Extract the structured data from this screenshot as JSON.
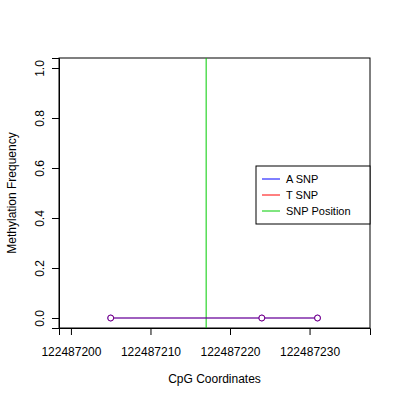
{
  "chart_data": {
    "type": "line",
    "x_label": "CpG Coordinates",
    "y_label": "Methylation Frequency",
    "x": [
      122487205,
      122487224,
      122487231
    ],
    "series": [
      {
        "name": "A SNP",
        "color": "#0000ff",
        "values": [
          0,
          0,
          0
        ],
        "marker": "circle"
      },
      {
        "name": "T SNP",
        "color": "#ff0000",
        "values": [
          0,
          0,
          0
        ],
        "marker": "circle"
      }
    ],
    "vlines": [
      {
        "name": "SNP Position",
        "color": "#00cc00",
        "x": 122487217
      }
    ],
    "xlim": [
      122487198.5,
      122487237.6
    ],
    "xticks": [
      122487200,
      122487210,
      122487220,
      122487230
    ],
    "ylim": [
      -0.04,
      1.04
    ],
    "yticks": [
      {
        "value": 0,
        "label": "0.0"
      },
      {
        "value": 0.2,
        "label": "0.2"
      },
      {
        "value": 0.4,
        "label": "0.4"
      },
      {
        "value": 0.6,
        "label": "0.6"
      },
      {
        "value": 0.8,
        "label": "0.8"
      },
      {
        "value": 1,
        "label": "1.0"
      }
    ],
    "legend": "right",
    "grid": false
  }
}
